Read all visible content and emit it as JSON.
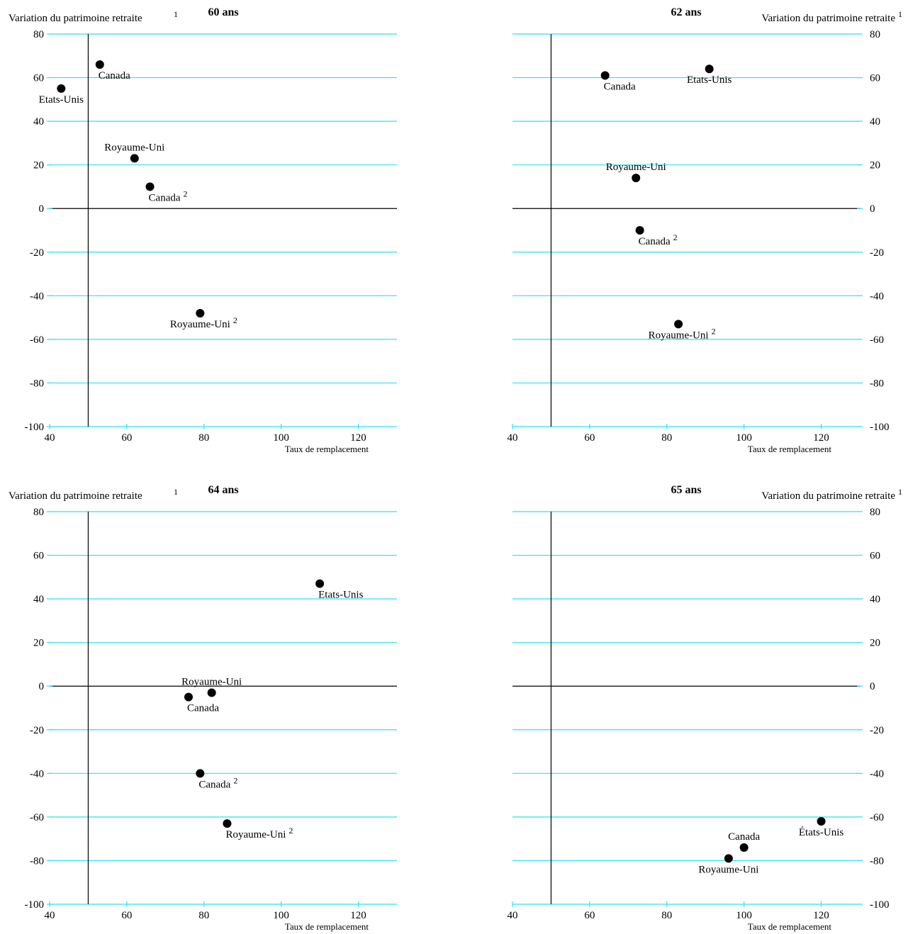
{
  "axes": {
    "y_label": "Variation du patrimoine retraite",
    "y_label_note": "1",
    "x_label": "Taux de remplacement"
  },
  "chart_data": [
    {
      "type": "scatter",
      "title": "60 ans",
      "xlabel": "Taux de remplacement",
      "ylabel": "Variation du patrimoine retraite",
      "ylabel_note": "1",
      "xlim": [
        40,
        130
      ],
      "ylim": [
        -100,
        80
      ],
      "xticks": [
        40,
        60,
        80,
        100,
        120
      ],
      "yticks": [
        80,
        60,
        40,
        20,
        0,
        -20,
        -40,
        -60,
        -80,
        -100
      ],
      "y_axis_side": "left",
      "ref_x": 50,
      "ref_y": 0,
      "grid": true,
      "points": [
        {
          "label": "Canada",
          "note": "",
          "x": 53,
          "y": 66,
          "label_pos": "below-right"
        },
        {
          "label": "Etats-Unis",
          "note": "",
          "x": 43,
          "y": 55,
          "label_pos": "below"
        },
        {
          "label": "Royaume-Uni",
          "note": "",
          "x": 62,
          "y": 23,
          "label_pos": "above"
        },
        {
          "label": "Canada",
          "note": "2",
          "x": 66,
          "y": 10,
          "label_pos": "below-right"
        },
        {
          "label": "Royaume-Uni",
          "note": "2",
          "x": 79,
          "y": -48,
          "label_pos": "below"
        }
      ]
    },
    {
      "type": "scatter",
      "title": "62 ans",
      "xlabel": "Taux de remplacement",
      "ylabel": "Variation du patrimoine retraite",
      "ylabel_note": "1",
      "xlim": [
        40,
        130
      ],
      "ylim": [
        -100,
        80
      ],
      "xticks": [
        40,
        60,
        80,
        100,
        120
      ],
      "yticks": [
        80,
        60,
        40,
        20,
        0,
        -20,
        -40,
        -60,
        -80,
        -100
      ],
      "y_axis_side": "right",
      "ref_x": 50,
      "ref_y": 0,
      "grid": true,
      "points": [
        {
          "label": "Canada",
          "note": "",
          "x": 64,
          "y": 61,
          "label_pos": "below-right"
        },
        {
          "label": "Etats-Unis",
          "note": "",
          "x": 91,
          "y": 64,
          "label_pos": "below"
        },
        {
          "label": "Royaume-Uni",
          "note": "",
          "x": 72,
          "y": 14,
          "label_pos": "above"
        },
        {
          "label": "Canada",
          "note": "2",
          "x": 73,
          "y": -10,
          "label_pos": "below-right"
        },
        {
          "label": "Royaume-Uni",
          "note": "2",
          "x": 83,
          "y": -53,
          "label_pos": "below"
        }
      ]
    },
    {
      "type": "scatter",
      "title": "64 ans",
      "xlabel": "Taux de remplacement",
      "ylabel": "Variation du patrimoine retraite",
      "ylabel_note": "1",
      "xlim": [
        40,
        130
      ],
      "ylim": [
        -100,
        80
      ],
      "xticks": [
        40,
        60,
        80,
        100,
        120
      ],
      "yticks": [
        80,
        60,
        40,
        20,
        0,
        -20,
        -40,
        -60,
        -80,
        -100
      ],
      "y_axis_side": "left",
      "ref_x": 50,
      "ref_y": 0,
      "grid": true,
      "points": [
        {
          "label": "Etats-Unis",
          "note": "",
          "x": 110,
          "y": 47,
          "label_pos": "below-right"
        },
        {
          "label": "Royaume-Uni",
          "note": "",
          "x": 82,
          "y": -3,
          "label_pos": "above"
        },
        {
          "label": "Canada",
          "note": "",
          "x": 76,
          "y": -5,
          "label_pos": "below-right"
        },
        {
          "label": "Canada",
          "note": "2",
          "x": 79,
          "y": -40,
          "label_pos": "below-right"
        },
        {
          "label": "Royaume-Uni",
          "note": "2",
          "x": 86,
          "y": -63,
          "label_pos": "below-right"
        }
      ]
    },
    {
      "type": "scatter",
      "title": "65 ans",
      "xlabel": "Taux de remplacement",
      "ylabel": "Variation du patrimoine retraite",
      "ylabel_note": "1",
      "xlim": [
        40,
        130
      ],
      "ylim": [
        -100,
        80
      ],
      "xticks": [
        40,
        60,
        80,
        100,
        120
      ],
      "yticks": [
        80,
        60,
        40,
        20,
        0,
        -20,
        -40,
        -60,
        -80,
        -100
      ],
      "y_axis_side": "right",
      "ref_x": 50,
      "ref_y": 0,
      "grid": true,
      "points": [
        {
          "label": "États-Unis",
          "note": "",
          "x": 120,
          "y": -62,
          "label_pos": "below"
        },
        {
          "label": "Canada",
          "note": "",
          "x": 100,
          "y": -74,
          "label_pos": "above"
        },
        {
          "label": "Royaume-Uni",
          "note": "",
          "x": 96,
          "y": -79,
          "label_pos": "below"
        }
      ]
    }
  ],
  "colors": {
    "grid": "#2be3f0",
    "axis": "#000000",
    "point": "#000000"
  }
}
